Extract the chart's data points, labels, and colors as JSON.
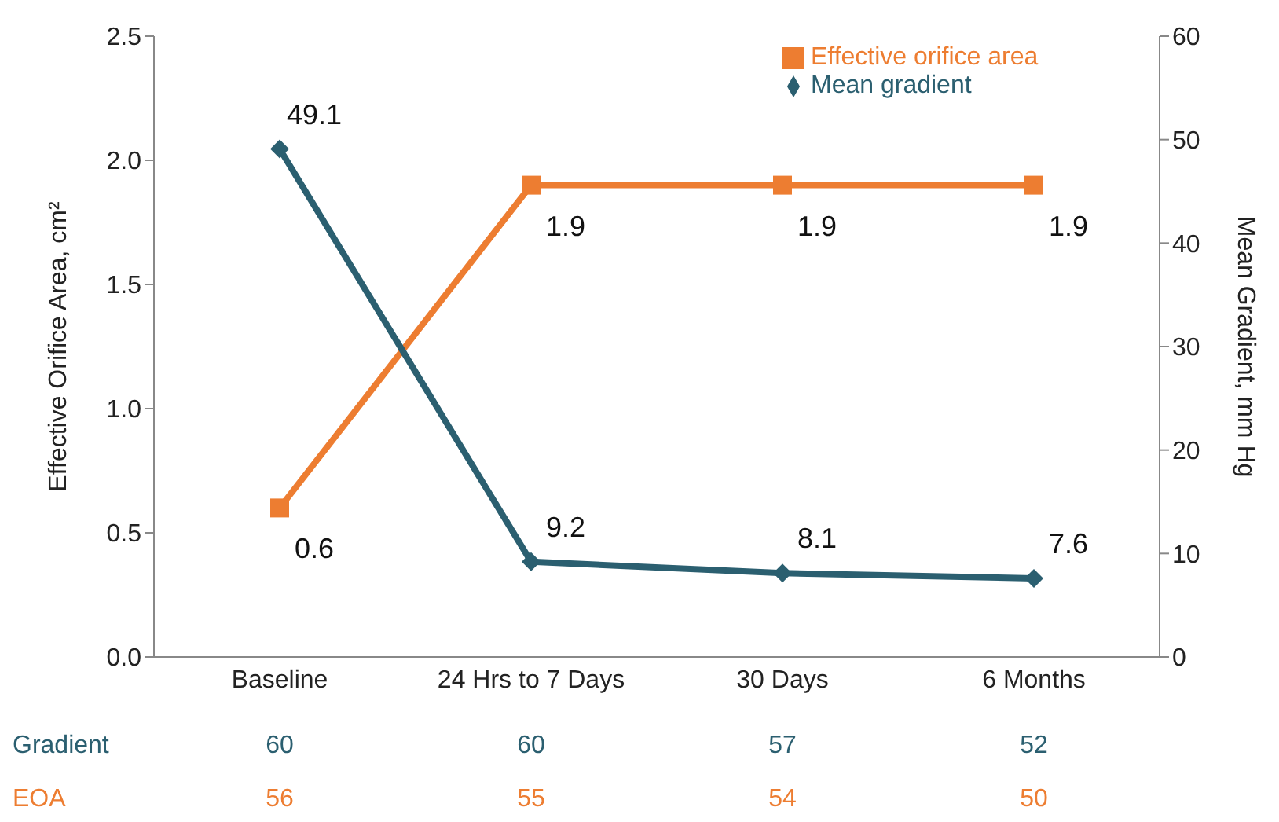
{
  "chart_data": {
    "type": "line",
    "categories": [
      "Baseline",
      "24 Hrs to 7 Days",
      "30 Days",
      "6 Months"
    ],
    "ylabel": "Effective Orifice Area, cm²",
    "y2label": "Mean Gradient, mm Hg",
    "ylim": [
      0,
      2.5
    ],
    "yticks": [
      {
        "value": 0,
        "label": "0.0"
      },
      {
        "value": 0.5,
        "label": "0.5"
      },
      {
        "value": 1,
        "label": "1.0"
      },
      {
        "value": 1.5,
        "label": "1.5"
      },
      {
        "value": 2,
        "label": "2.0"
      },
      {
        "value": 2.5,
        "label": "2.5"
      }
    ],
    "y2lim": [
      0,
      60
    ],
    "y2ticks": [
      0,
      10,
      20,
      30,
      40,
      50,
      60
    ],
    "series": [
      {
        "name": "Effective orifice area",
        "color": "#ed7d31",
        "values": [
          0.6,
          1.9,
          1.9,
          1.9
        ],
        "marker": "square"
      },
      {
        "name": "Mean gradient",
        "color": "#2b5f70",
        "values": [
          49.1,
          9.2,
          8.1,
          7.6
        ],
        "axis": "y2",
        "marker": "diamond"
      }
    ],
    "data_labels": true,
    "legend": "top right",
    "grid": false,
    "annotations": [
      "Gradient",
      "60",
      "60",
      "57",
      "52",
      "EOA",
      "56",
      "55",
      "54",
      "50"
    ]
  }
}
